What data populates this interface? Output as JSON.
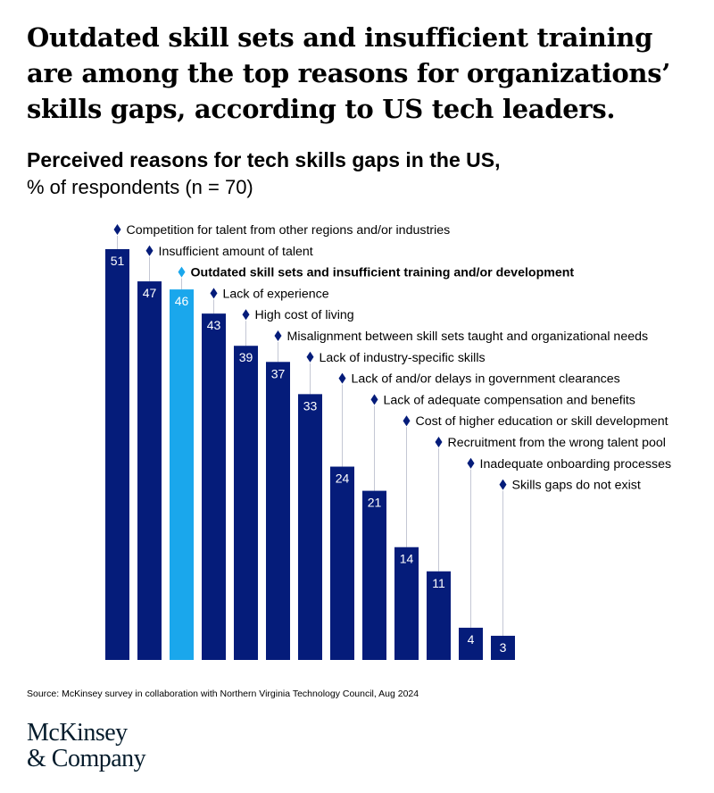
{
  "headline": "Outdated skill sets and insufficient training are among the top reasons for organizations’ skills gaps, according to US tech leaders.",
  "subtitle": "Perceived reasons for tech skills gaps in the US,",
  "unit": "% of respondents (n = 70)",
  "source": "Source: McKinsey survey in collaboration with Northern Virginia Technology Council, Aug 2024",
  "logo": {
    "line1": "McKinsey",
    "line2": "& Company"
  },
  "colors": {
    "bar": "#051c7a",
    "highlight": "#1aa7ec",
    "leader": "#c4c7d4",
    "text": "#000000"
  },
  "chart_data": {
    "type": "bar",
    "categories": [
      "Competition for talent from other regions and/or industries",
      "Insufficient amount of talent",
      "Outdated skill sets and insufficient training and/or development",
      "Lack of experience",
      "High cost of living",
      "Misalignment between skill sets taught and organizational needs",
      "Lack of industry-specific skills",
      "Lack of and/or delays in government clearances",
      "Lack of adequate compensation and benefits",
      "Cost of higher education or skill development",
      "Recruitment from the wrong talent pool",
      "Inadequate onboarding processes",
      "Skills gaps do not exist"
    ],
    "values": [
      51,
      47,
      46,
      43,
      39,
      37,
      33,
      24,
      21,
      14,
      11,
      4,
      3
    ],
    "highlight_index": 2,
    "ylim": [
      0,
      51
    ],
    "grid": false,
    "legend": "none"
  }
}
